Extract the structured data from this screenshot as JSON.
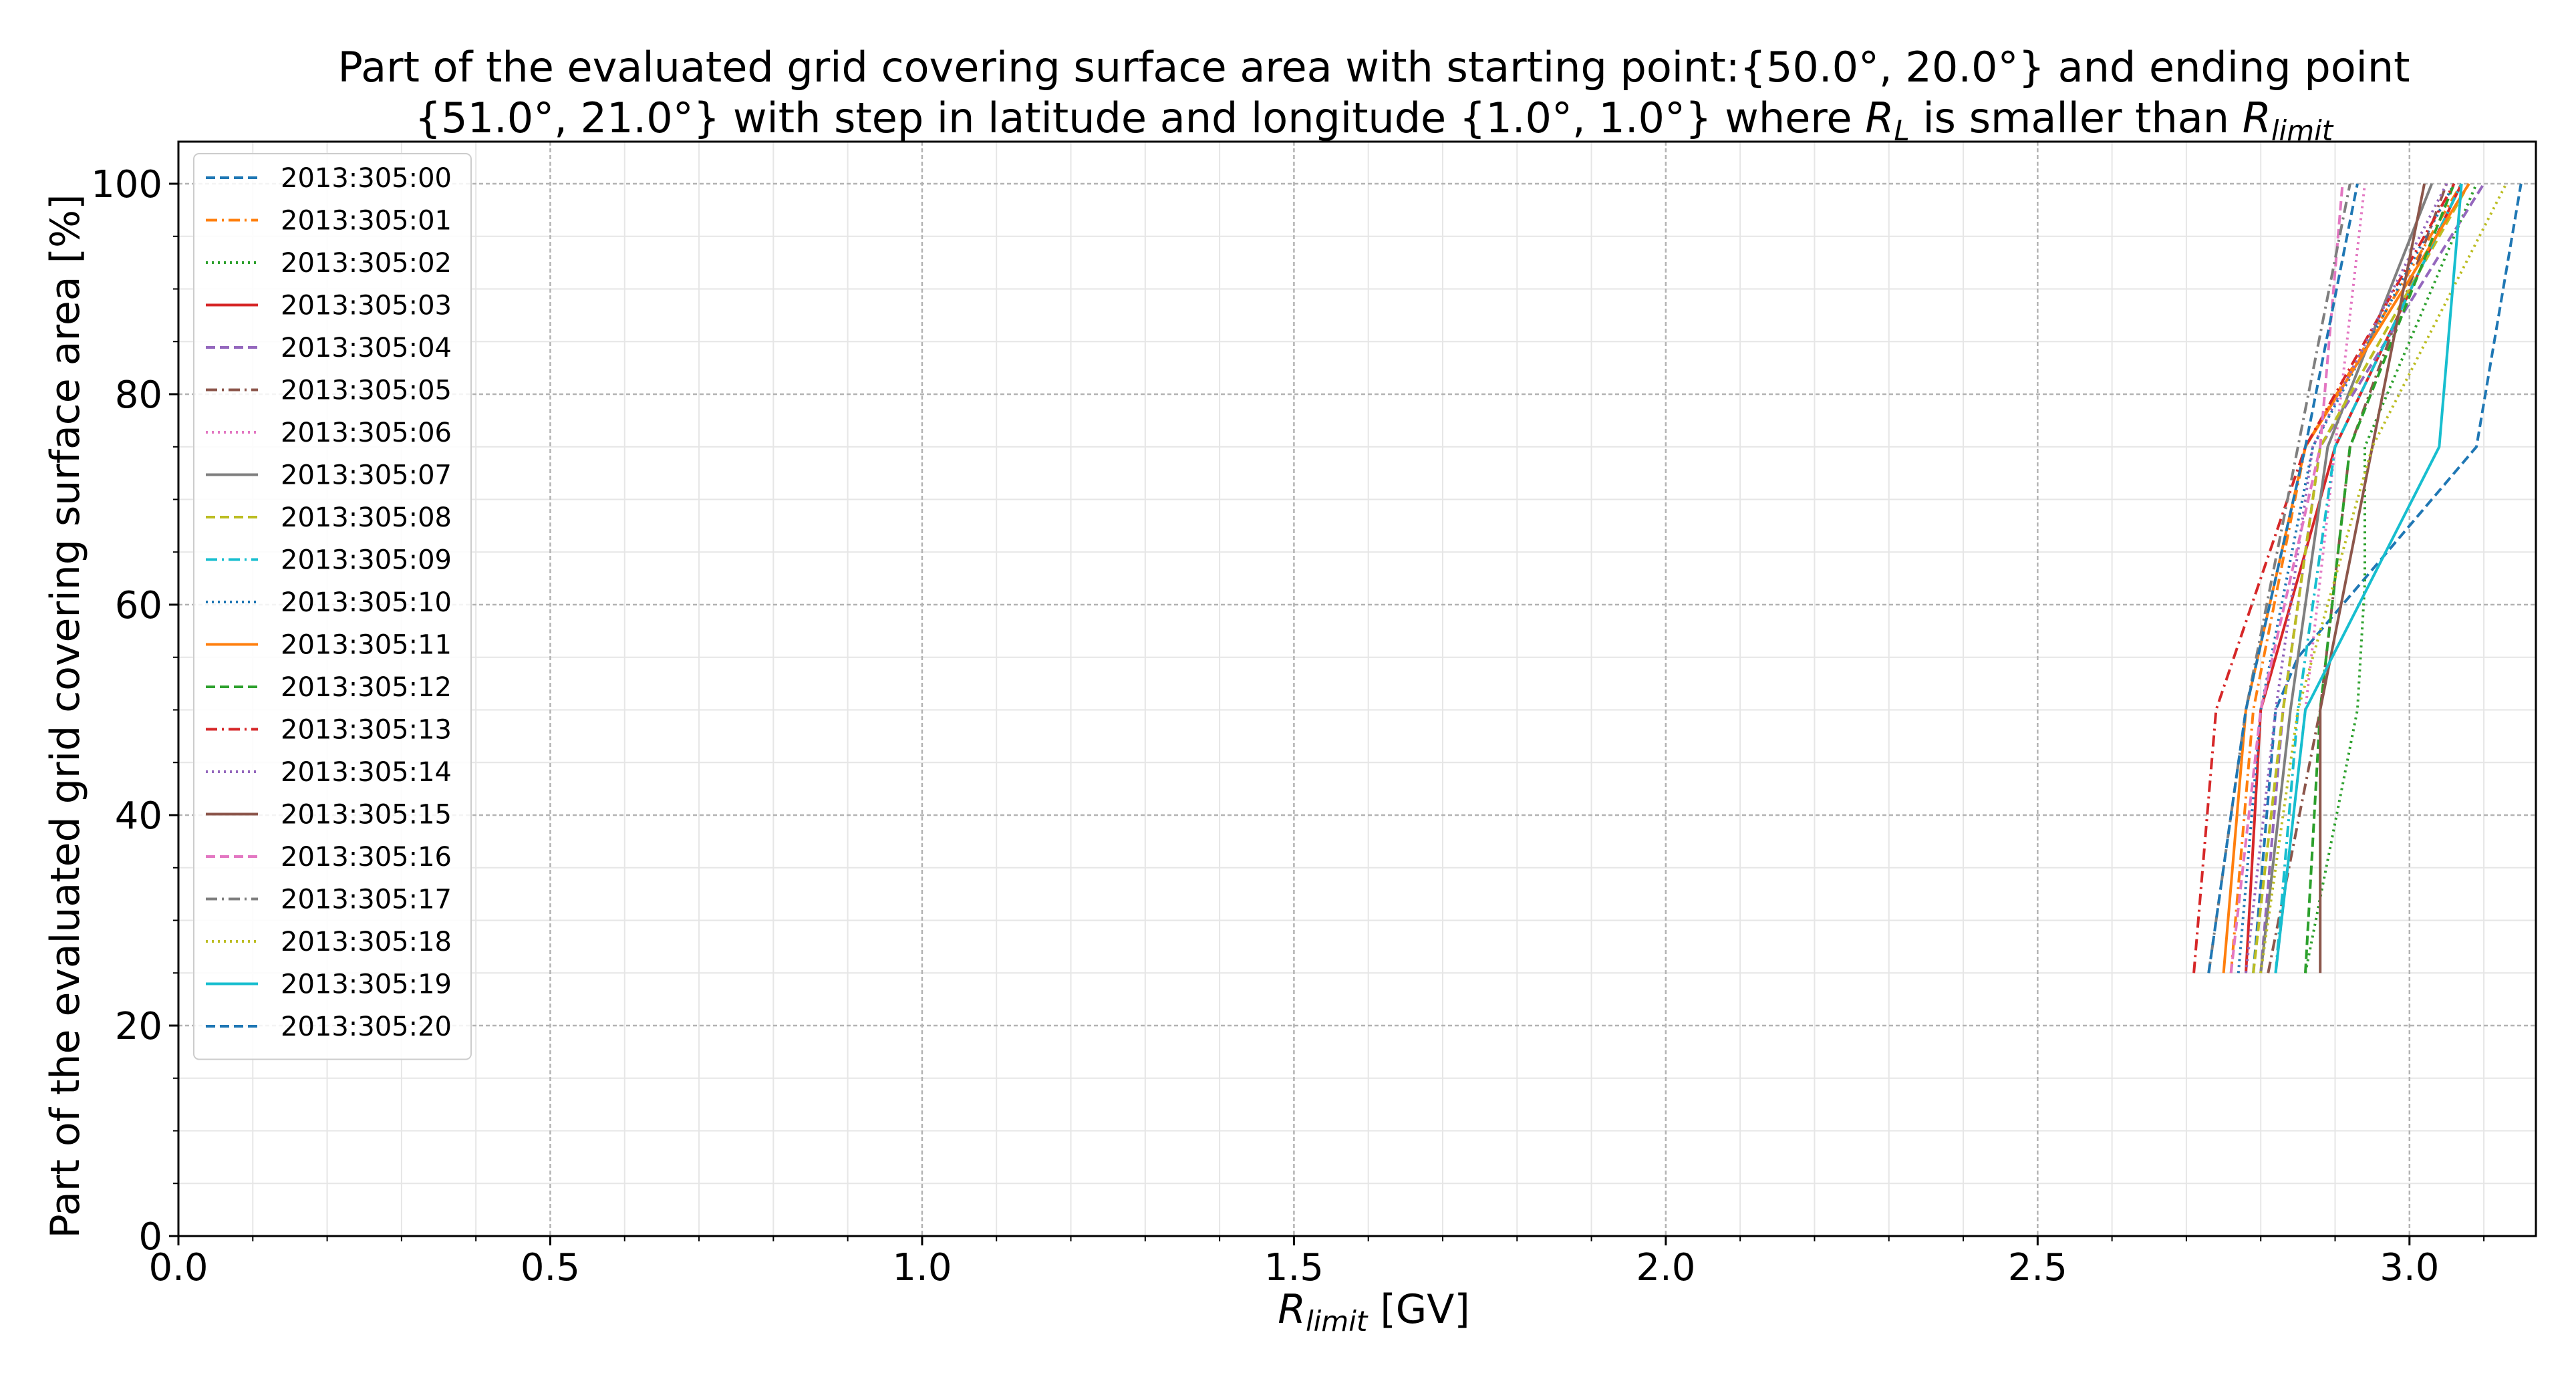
{
  "chart_data": {
    "type": "line",
    "title_line1": "Part of the evaluated grid covering surface area with starting point:{50.0°, 20.0°} and ending point",
    "title_line2_prefix": "{51.0°, 21.0°} with step in latitude and longitude {1.0°, 1.0°} where ",
    "title_rl_main": "R",
    "title_rl_sub": "L",
    "title_mid": " is smaller than ",
    "title_rlimit_main": "R",
    "title_rlimit_sub": "limit",
    "xlabel_main": "R",
    "xlabel_sub": "limit",
    "xlabel_unit": " [GV]",
    "ylabel": "Part of the evaluated grid covering surface area  [%]",
    "xlim": [
      0.0,
      3.17
    ],
    "ylim": [
      0,
      104
    ],
    "x_ticks": [
      0.0,
      0.5,
      1.0,
      1.5,
      2.0,
      2.5,
      3.0
    ],
    "x_tick_labels": [
      "0.0",
      "0.5",
      "1.0",
      "1.5",
      "2.0",
      "2.5",
      "3.0"
    ],
    "y_ticks": [
      0,
      20,
      40,
      60,
      80,
      100
    ],
    "y_tick_labels": [
      "0",
      "20",
      "40",
      "60",
      "80",
      "100"
    ],
    "grid": true,
    "minor_grid": true,
    "legend_position": "upper-left",
    "series": [
      {
        "name": "2013:305:00",
        "color": "#1f77b4",
        "dash": "dashed",
        "x": [
          2.79,
          2.82,
          2.85,
          3.09,
          3.15
        ],
        "y": [
          25,
          50,
          55,
          75,
          100
        ]
      },
      {
        "name": "2013:305:01",
        "color": "#ff7f0e",
        "dash": "dashdot",
        "x": [
          2.76,
          2.79,
          2.86,
          3.07
        ],
        "y": [
          25,
          50,
          75,
          100
        ]
      },
      {
        "name": "2013:305:02",
        "color": "#2ca02c",
        "dash": "dotted",
        "x": [
          2.86,
          2.93,
          2.94,
          2.94,
          3.09
        ],
        "y": [
          25,
          50,
          62,
          75,
          100
        ]
      },
      {
        "name": "2013:305:03",
        "color": "#d62728",
        "dash": "solid",
        "x": [
          2.78,
          2.8,
          2.9,
          3.07
        ],
        "y": [
          25,
          50,
          75,
          100
        ]
      },
      {
        "name": "2013:305:04",
        "color": "#9467bd",
        "dash": "dashed",
        "x": [
          2.8,
          2.83,
          2.88,
          3.1
        ],
        "y": [
          25,
          50,
          75,
          100
        ]
      },
      {
        "name": "2013:305:05",
        "color": "#8c564b",
        "dash": "dashdot",
        "x": [
          2.81,
          2.88,
          2.92,
          3.05
        ],
        "y": [
          25,
          50,
          75,
          100
        ]
      },
      {
        "name": "2013:305:06",
        "color": "#e377c2",
        "dash": "dotted",
        "x": [
          2.82,
          2.86,
          2.9,
          2.94
        ],
        "y": [
          25,
          50,
          75,
          100
        ]
      },
      {
        "name": "2013:305:07",
        "color": "#7f7f7f",
        "dash": "solid",
        "x": [
          2.8,
          2.84,
          2.89,
          3.03
        ],
        "y": [
          25,
          50,
          75,
          100
        ]
      },
      {
        "name": "2013:305:08",
        "color": "#bcbd22",
        "dash": "dashed",
        "x": [
          2.79,
          2.83,
          2.88,
          3.08
        ],
        "y": [
          25,
          50,
          75,
          100
        ]
      },
      {
        "name": "2013:305:09",
        "color": "#17becf",
        "dash": "dashdot",
        "x": [
          2.82,
          2.85,
          2.9,
          3.07
        ],
        "y": [
          25,
          50,
          75,
          100
        ]
      },
      {
        "name": "2013:305:10",
        "color": "#1f77b4",
        "dash": "dotted",
        "x": [
          2.77,
          2.8,
          2.87,
          3.06
        ],
        "y": [
          25,
          50,
          75,
          100
        ]
      },
      {
        "name": "2013:305:11",
        "color": "#ff7f0e",
        "dash": "solid",
        "x": [
          2.75,
          2.78,
          2.86,
          3.08
        ],
        "y": [
          25,
          50,
          75,
          100
        ]
      },
      {
        "name": "2013:305:12",
        "color": "#2ca02c",
        "dash": "dashed",
        "x": [
          2.86,
          2.88,
          2.92,
          3.06
        ],
        "y": [
          25,
          50,
          75,
          100
        ]
      },
      {
        "name": "2013:305:13",
        "color": "#d62728",
        "dash": "dashdot",
        "x": [
          2.71,
          2.74,
          2.86,
          3.06
        ],
        "y": [
          25,
          50,
          75,
          100
        ]
      },
      {
        "name": "2013:305:14",
        "color": "#9467bd",
        "dash": "dotted",
        "x": [
          2.78,
          2.82,
          2.87,
          3.05
        ],
        "y": [
          25,
          50,
          75,
          100
        ]
      },
      {
        "name": "2013:305:15",
        "color": "#8c564b",
        "dash": "solid",
        "x": [
          2.88,
          2.88,
          2.95,
          3.02
        ],
        "y": [
          25,
          50,
          75,
          100
        ]
      },
      {
        "name": "2013:305:16",
        "color": "#e377c2",
        "dash": "dashed",
        "x": [
          2.76,
          2.8,
          2.88,
          2.91
        ],
        "y": [
          25,
          50,
          75,
          100
        ]
      },
      {
        "name": "2013:305:17",
        "color": "#7f7f7f",
        "dash": "dashdot",
        "x": [
          2.73,
          2.78,
          2.85,
          2.92
        ],
        "y": [
          25,
          50,
          75,
          100
        ]
      },
      {
        "name": "2013:305:18",
        "color": "#bcbd22",
        "dash": "dotted",
        "x": [
          2.8,
          2.85,
          2.95,
          3.13
        ],
        "y": [
          25,
          50,
          75,
          100
        ]
      },
      {
        "name": "2013:305:19",
        "color": "#17becf",
        "dash": "solid",
        "x": [
          2.82,
          2.86,
          3.04,
          3.07
        ],
        "y": [
          25,
          50,
          75,
          100
        ]
      },
      {
        "name": "2013:305:20",
        "color": "#1f77b4",
        "dash": "dashed",
        "x": [
          2.73,
          2.78,
          2.86,
          2.93
        ],
        "y": [
          25,
          50,
          75,
          100
        ]
      }
    ]
  }
}
